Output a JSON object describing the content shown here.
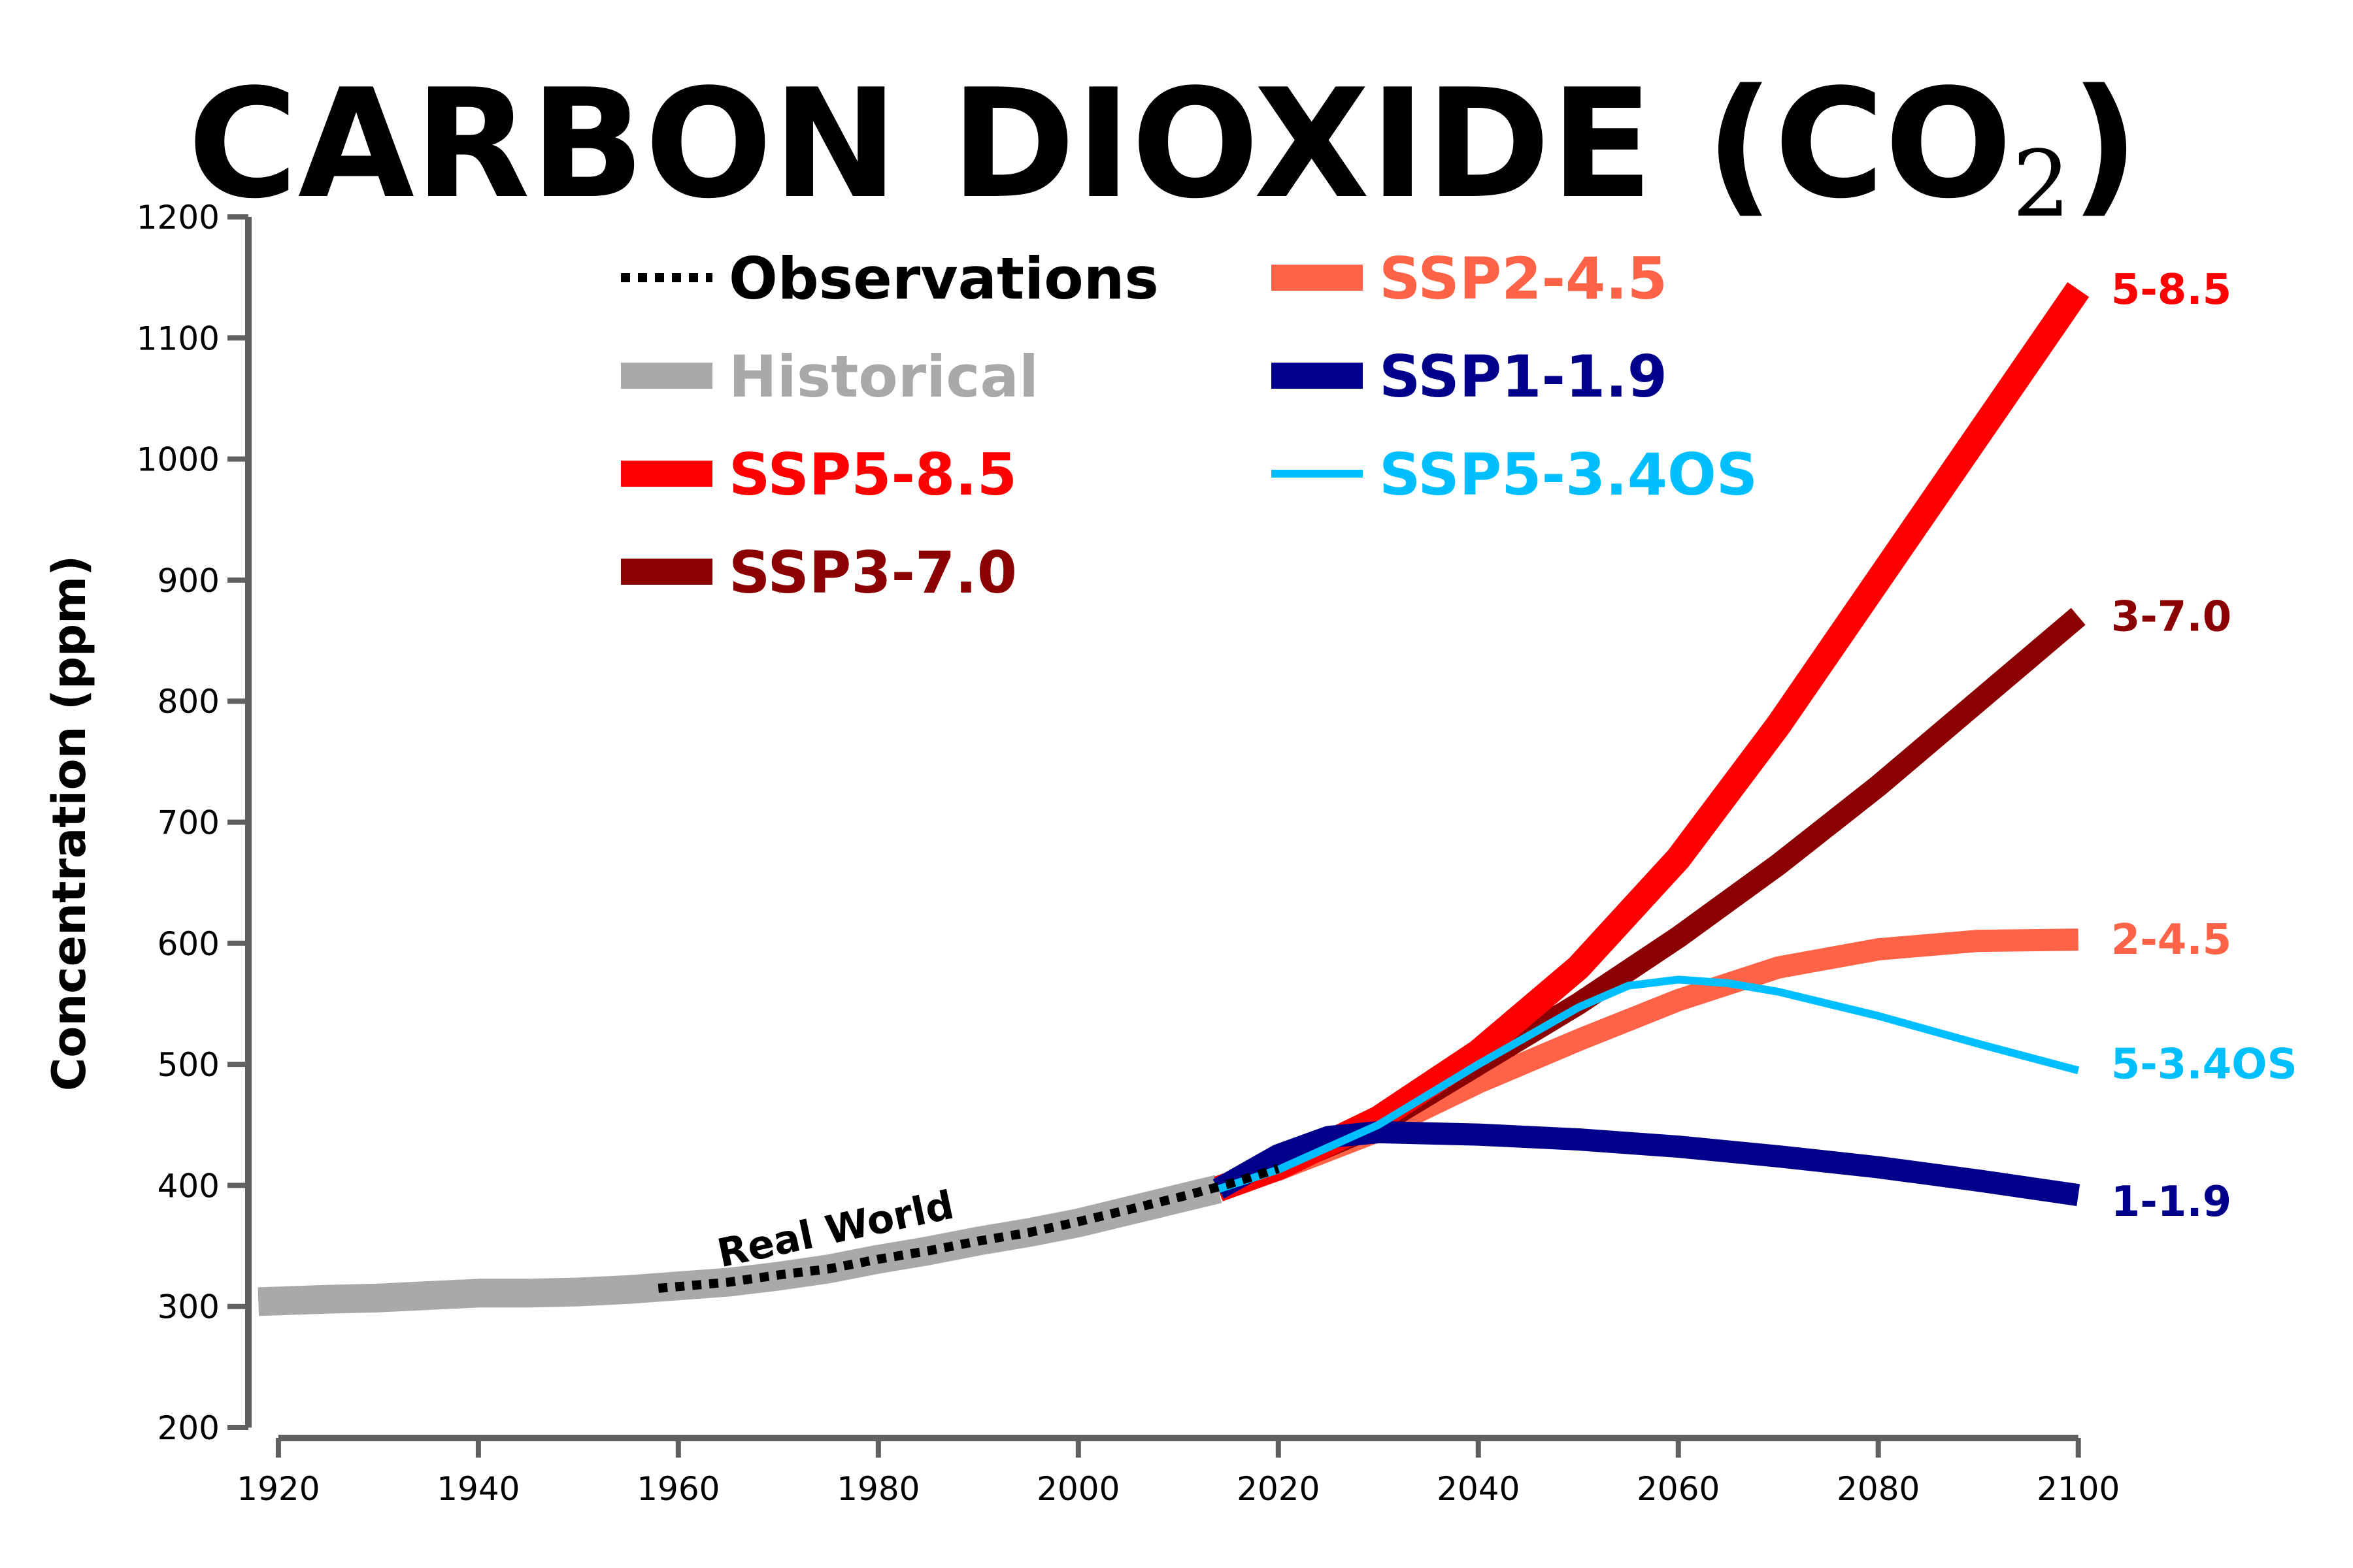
{
  "chart_data": {
    "type": "line",
    "title": "CARBON DIOXIDE (CO",
    "title_subscript": "2",
    "title_close": ")",
    "ylabel": "Concentration (ppm)",
    "xlabel": "",
    "xlim": [
      1917,
      2101
    ],
    "ylim": [
      200,
      1200
    ],
    "x_ticks": [
      1920,
      1940,
      1960,
      1980,
      2000,
      2020,
      2040,
      2060,
      2080,
      2100
    ],
    "y_ticks": [
      200,
      300,
      400,
      500,
      600,
      700,
      800,
      900,
      1000,
      1100,
      1200
    ],
    "legend_position": "top-left",
    "grid": false,
    "annotation": {
      "text": "Real World",
      "x": 1976,
      "y": 353
    },
    "series": [
      {
        "name": "Historical",
        "end_label": "",
        "color": "#a9a9a9",
        "style": "solid",
        "width": 44,
        "x": [
          1918,
          1925,
          1930,
          1935,
          1940,
          1945,
          1950,
          1955,
          1960,
          1965,
          1970,
          1975,
          1980,
          1985,
          1990,
          1995,
          2000,
          2005,
          2010,
          2014
        ],
        "y": [
          304,
          306,
          307,
          309,
          311,
          311,
          312,
          314,
          317,
          320,
          325,
          331,
          339,
          346,
          354,
          361,
          369,
          379,
          389,
          397
        ]
      },
      {
        "name": "Observations",
        "end_label": "",
        "color": "#000000",
        "style": "dotted",
        "width": 14,
        "x": [
          1958,
          1965,
          1970,
          1975,
          1980,
          1985,
          1990,
          1995,
          2000,
          2005,
          2010,
          2015,
          2020
        ],
        "y": [
          315,
          320,
          326,
          331,
          339,
          346,
          354,
          361,
          370,
          380,
          390,
          401,
          414
        ]
      },
      {
        "name": "SSP5-8.5",
        "end_label": "5-8.5",
        "color": "#ff0000",
        "style": "solid",
        "width": 40,
        "x": [
          2014,
          2020,
          2030,
          2040,
          2050,
          2060,
          2070,
          2080,
          2090,
          2100
        ],
        "y": [
          397,
          415,
          455,
          510,
          580,
          670,
          780,
          900,
          1020,
          1140
        ]
      },
      {
        "name": "SSP3-7.0",
        "end_label": "3-7.0",
        "color": "#8b0000",
        "style": "solid",
        "width": 34,
        "x": [
          2014,
          2020,
          2030,
          2040,
          2050,
          2060,
          2070,
          2080,
          2090,
          2100
        ],
        "y": [
          397,
          415,
          450,
          500,
          550,
          605,
          665,
          730,
          800,
          870
        ]
      },
      {
        "name": "SSP2-4.5",
        "end_label": "2-4.5",
        "color": "#ff6347",
        "style": "solid",
        "width": 34,
        "x": [
          2014,
          2020,
          2030,
          2040,
          2050,
          2060,
          2070,
          2080,
          2090,
          2100
        ],
        "y": [
          397,
          413,
          445,
          485,
          520,
          553,
          580,
          595,
          602,
          603
        ]
      },
      {
        "name": "SSP1-1.9",
        "end_label": "1-1.9",
        "color": "#00008b",
        "style": "solid",
        "width": 34,
        "x": [
          2014,
          2020,
          2025,
          2030,
          2040,
          2050,
          2060,
          2070,
          2080,
          2090,
          2100
        ],
        "y": [
          397,
          425,
          440,
          444,
          442,
          438,
          432,
          424,
          415,
          404,
          392
        ]
      },
      {
        "name": "SSP5-3.4OS",
        "end_label": "5-3.4OS",
        "color": "#00bfff",
        "style": "solid",
        "width": 12,
        "x": [
          2014,
          2020,
          2030,
          2040,
          2050,
          2055,
          2060,
          2065,
          2070,
          2080,
          2090,
          2100
        ],
        "y": [
          397,
          413,
          450,
          500,
          547,
          565,
          570,
          567,
          560,
          540,
          517,
          495
        ]
      }
    ],
    "legend": {
      "left_column": [
        "Observations",
        "Historical",
        "SSP5-8.5",
        "SSP3-7.0"
      ],
      "right_column": [
        "SSP2-4.5",
        "SSP1-1.9",
        "SSP5-3.4OS"
      ]
    }
  }
}
